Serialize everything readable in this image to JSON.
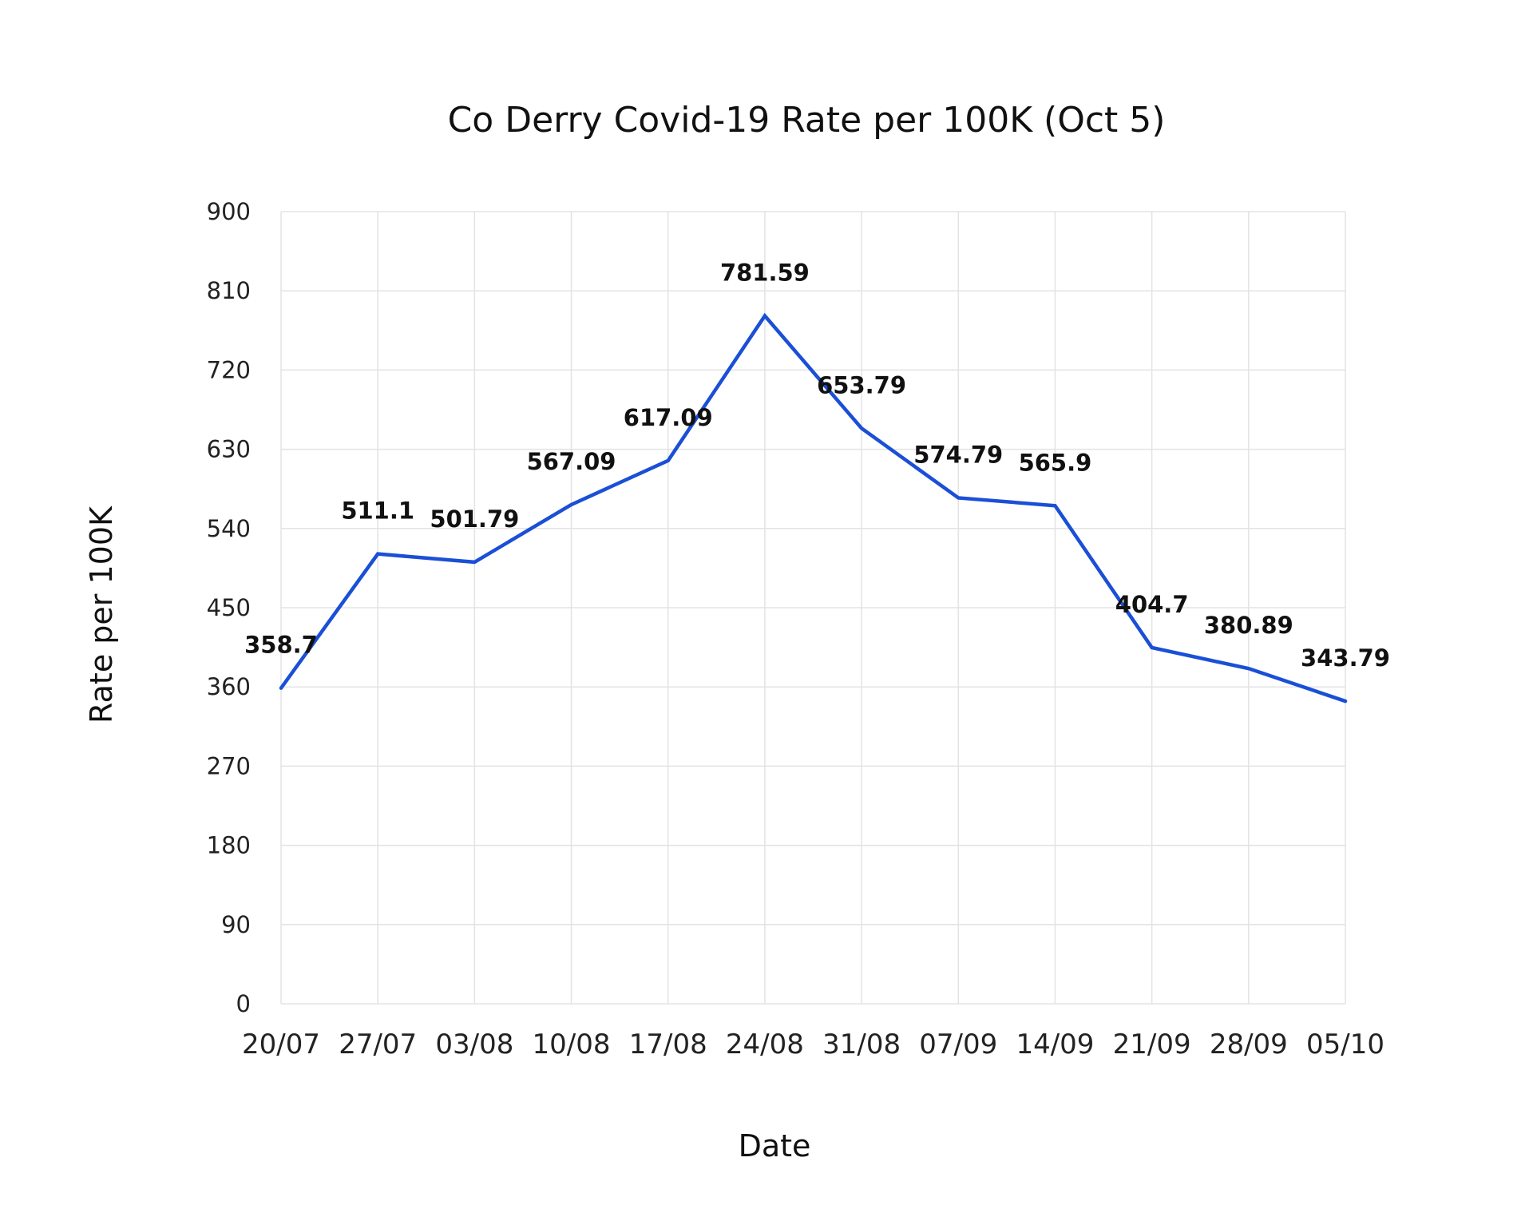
{
  "chart_data": {
    "type": "line",
    "title": "Co Derry Covid-19 Rate per 100K (Oct 5)",
    "xlabel": "Date",
    "ylabel": "Rate per 100K",
    "categories": [
      "20/07",
      "27/07",
      "03/08",
      "10/08",
      "17/08",
      "24/08",
      "31/08",
      "07/09",
      "14/09",
      "21/09",
      "28/09",
      "05/10"
    ],
    "series": [
      {
        "values": [
          358.7,
          511.1,
          501.79,
          567.09,
          617.09,
          781.59,
          653.79,
          574.79,
          565.9,
          404.7,
          380.89,
          343.79
        ],
        "labels": [
          "358.7",
          "511.1",
          "501.79",
          "567.09",
          "617.09",
          "781.59",
          "653.79",
          "574.79",
          "565.9",
          "404.7",
          "380.89",
          "343.79"
        ],
        "color": "#1a4fd6"
      }
    ],
    "ylim": [
      0,
      900
    ],
    "yticks": [
      "0",
      "90",
      "180",
      "270",
      "360",
      "450",
      "540",
      "630",
      "720",
      "810",
      "900"
    ],
    "grid": true,
    "legend": "none"
  }
}
